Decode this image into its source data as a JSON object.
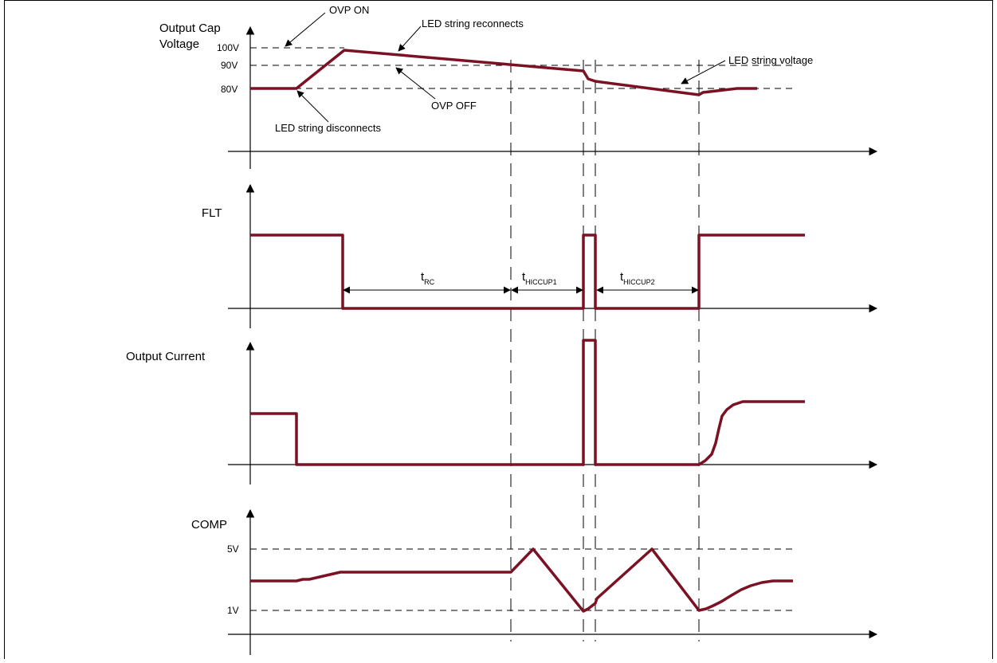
{
  "colors": {
    "waveform": "#7a1224",
    "axis": "#000000",
    "border": "#000000"
  },
  "icons": {
    "axis_arrow": "arrowhead-icon"
  },
  "panels": {
    "voltage": {
      "title_line1": "Output Cap",
      "title_line2": "Voltage",
      "levels": [
        "100V",
        "90V",
        "80V"
      ],
      "annotations": {
        "ovp_on": "OVP ON",
        "led_reconnects": "LED string reconnects",
        "led_voltage": "LED string voltage",
        "ovp_off": "OVP OFF",
        "led_disconnects": "LED string disconnects"
      }
    },
    "flt": {
      "title": "FLT",
      "intervals": [
        {
          "symbol": "t",
          "subscript": "RC"
        },
        {
          "symbol": "t",
          "subscript": "HICCUP1"
        },
        {
          "symbol": "t",
          "subscript": "HICCUP2"
        }
      ]
    },
    "current": {
      "title": "Output Current"
    },
    "comp": {
      "title": "COMP",
      "levels": [
        "5V",
        "1V"
      ]
    }
  }
}
